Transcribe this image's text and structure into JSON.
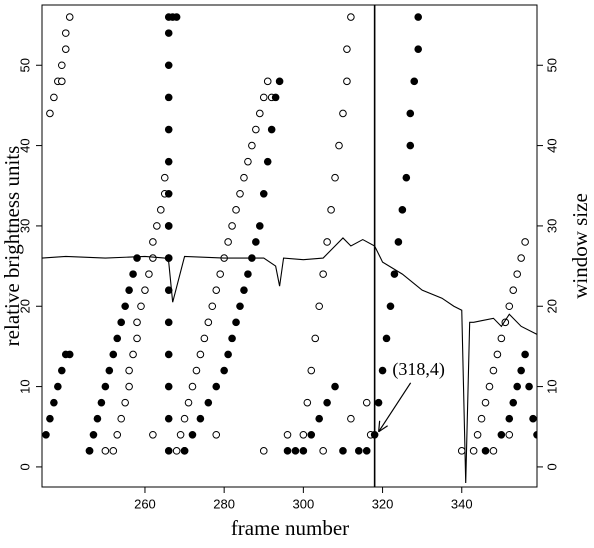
{
  "chart_data": {
    "type": "scatter",
    "xlabel": "frame number",
    "ylabel": "relative brightness units",
    "y2label": "window size",
    "xlim": [
      234,
      359
    ],
    "xticks": [
      260,
      280,
      300,
      320,
      340
    ],
    "ylim": [
      -2.5,
      57.5
    ],
    "yticks": [
      0,
      10,
      20,
      30,
      40,
      50
    ],
    "y2lim": [
      -2.5,
      57.5
    ],
    "y2ticks": [
      0,
      10,
      20,
      30,
      40,
      50
    ],
    "vline": 318,
    "annotation": {
      "text": "(318,4)",
      "x": 318,
      "y": 4
    },
    "series": [
      {
        "marker": "open",
        "color": "#000000",
        "x": [
          236,
          237,
          238,
          239,
          239,
          240,
          240,
          241,
          252,
          253,
          254,
          255,
          256,
          256,
          257,
          258,
          258,
          259,
          260,
          261,
          262,
          262,
          263,
          264,
          265,
          265,
          266,
          266,
          268,
          269,
          270,
          271,
          272,
          273,
          274,
          275,
          276,
          277,
          278,
          279,
          280,
          281,
          282,
          283,
          284,
          285,
          286,
          287,
          288,
          289,
          290,
          291,
          292,
          300,
          301,
          302,
          303,
          304,
          305,
          306,
          307,
          308,
          309,
          310,
          311,
          311,
          312,
          343,
          344,
          345,
          346,
          347,
          348,
          349,
          350,
          351,
          352,
          353,
          354,
          355,
          356,
          246,
          250,
          262,
          270,
          278,
          290,
          296,
          305,
          312,
          316,
          317,
          340,
          348,
          352
        ],
        "values": [
          44,
          46,
          48,
          48,
          50,
          52,
          54,
          56,
          2,
          4,
          6,
          8,
          10,
          12,
          14,
          16,
          18,
          20,
          22,
          24,
          26,
          28,
          30,
          32,
          34,
          36,
          30,
          26,
          2,
          4,
          6,
          8,
          10,
          12,
          14,
          16,
          18,
          20,
          22,
          24,
          26,
          28,
          30,
          32,
          34,
          36,
          38,
          40,
          42,
          44,
          46,
          48,
          46,
          4,
          8,
          12,
          16,
          20,
          24,
          28,
          32,
          36,
          40,
          44,
          48,
          52,
          56,
          2,
          4,
          6,
          8,
          10,
          12,
          14,
          16,
          18,
          20,
          22,
          24,
          26,
          28,
          2,
          2,
          4,
          2,
          4,
          2,
          4,
          2,
          6,
          8,
          4,
          2,
          2,
          4
        ]
      },
      {
        "marker": "filled",
        "color": "#000000",
        "x": [
          235,
          236,
          237,
          238,
          239,
          240,
          241,
          246,
          247,
          248,
          249,
          250,
          251,
          252,
          253,
          254,
          255,
          256,
          257,
          258,
          266,
          266,
          266,
          266,
          266,
          266,
          266,
          266,
          266,
          266,
          266,
          266,
          266,
          266,
          266,
          267,
          268,
          270,
          272,
          274,
          276,
          278,
          280,
          281,
          282,
          283,
          284,
          285,
          286,
          287,
          288,
          289,
          290,
          291,
          292,
          293,
          294,
          296,
          298,
          300,
          302,
          304,
          306,
          308,
          310,
          314,
          316,
          318,
          319,
          320,
          321,
          322,
          323,
          324,
          325,
          326,
          327,
          327,
          328,
          329,
          329,
          346,
          350,
          352,
          353,
          354,
          355,
          356,
          357,
          358,
          359
        ],
        "values": [
          4,
          6,
          8,
          10,
          12,
          14,
          14,
          2,
          4,
          6,
          8,
          10,
          12,
          14,
          16,
          18,
          20,
          22,
          24,
          26,
          2,
          6,
          10,
          14,
          18,
          22,
          26,
          30,
          34,
          38,
          42,
          46,
          50,
          54,
          56,
          56,
          56,
          2,
          4,
          6,
          8,
          10,
          12,
          14,
          16,
          18,
          20,
          22,
          24,
          26,
          28,
          30,
          34,
          38,
          42,
          46,
          48,
          2,
          2,
          2,
          4,
          6,
          8,
          10,
          2,
          2,
          2,
          4,
          8,
          12,
          16,
          20,
          24,
          28,
          32,
          36,
          40,
          44,
          48,
          52,
          56,
          2,
          4,
          6,
          8,
          10,
          12,
          14,
          10,
          6,
          4
        ]
      },
      {
        "marker": "line",
        "axis": "y2",
        "color": "#000000",
        "x": [
          234,
          240,
          250,
          260,
          265,
          266,
          267,
          270,
          280,
          290,
          293,
          294,
          295,
          300,
          305,
          308,
          310,
          312,
          315,
          318,
          320,
          325,
          330,
          335,
          338,
          340,
          341,
          342,
          343,
          345,
          348,
          350,
          352,
          355,
          359
        ],
        "values": [
          26,
          26.2,
          26,
          26.2,
          26,
          25.5,
          20.5,
          26.2,
          26,
          26,
          25,
          22.5,
          26,
          25.8,
          26,
          27.5,
          28.5,
          27.5,
          28.3,
          27.5,
          25.5,
          24,
          22,
          21,
          20,
          19.5,
          -2,
          18,
          18,
          18.2,
          18.5,
          17.5,
          19,
          17.5,
          16.5
        ]
      }
    ]
  }
}
